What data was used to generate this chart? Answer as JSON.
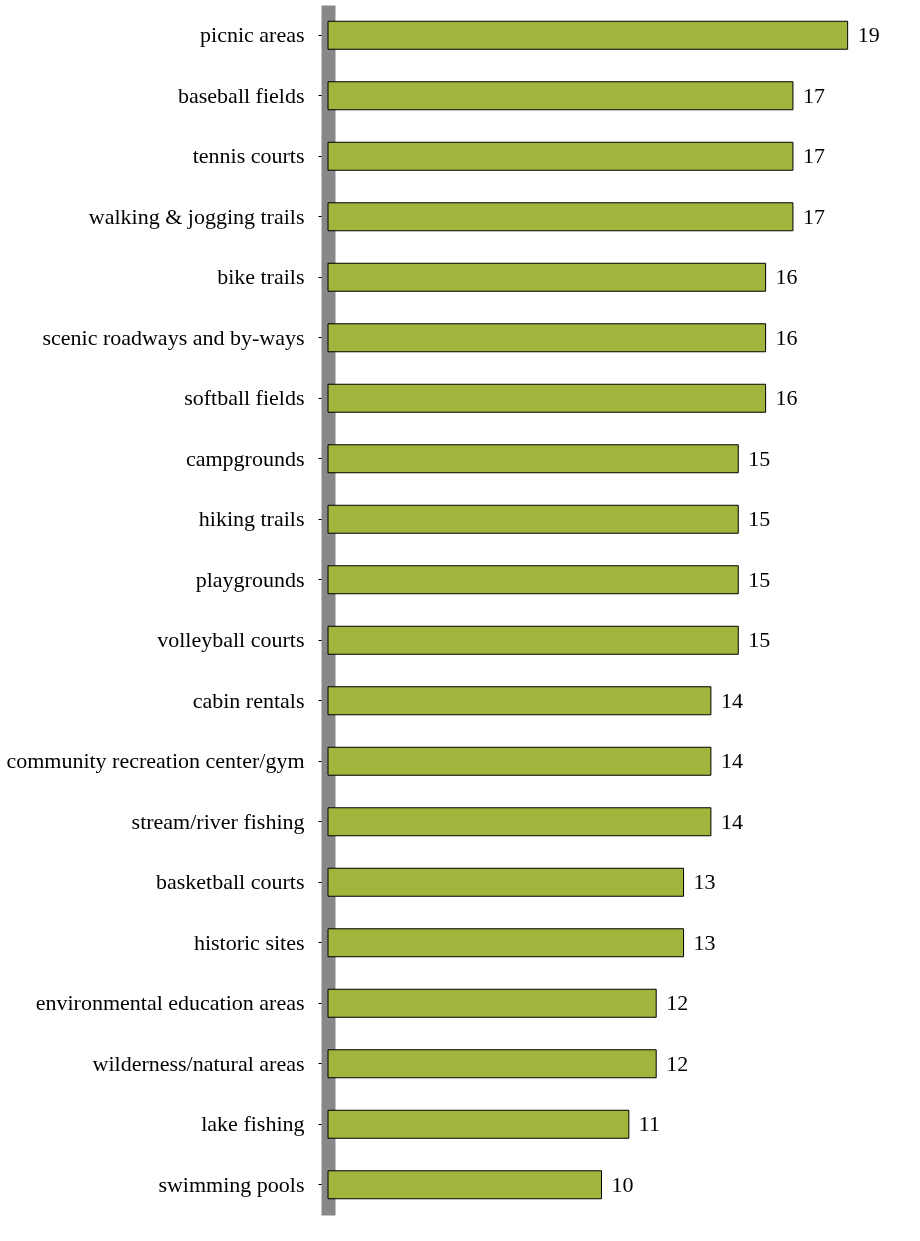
{
  "chart_data": {
    "type": "bar",
    "orientation": "horizontal",
    "categories": [
      "picnic areas",
      "baseball fields",
      "tennis courts",
      "walking & jogging trails",
      "bike trails",
      "scenic roadways and by-ways",
      "softball fields",
      "campgrounds",
      "hiking trails",
      "playgrounds",
      "volleyball courts",
      "cabin rentals",
      "community recreation center/gym",
      "stream/river fishing",
      "basketball courts",
      "historic sites",
      "environmental education areas",
      "wilderness/natural areas",
      "lake fishing",
      "swimming pools"
    ],
    "values": [
      19,
      17,
      17,
      17,
      16,
      16,
      16,
      15,
      15,
      15,
      15,
      14,
      14,
      14,
      13,
      13,
      12,
      12,
      11,
      10
    ],
    "color": "#9fb53b",
    "data_labels": true
  }
}
